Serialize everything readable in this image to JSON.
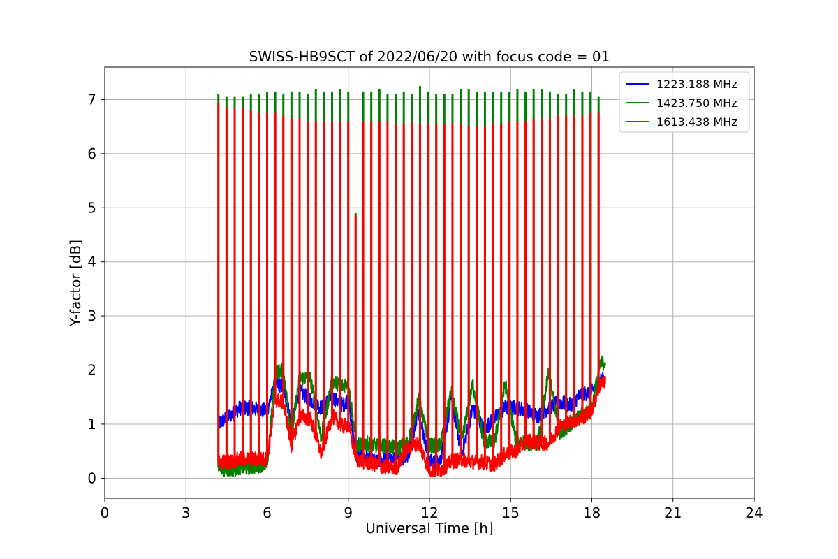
{
  "chart_data": {
    "type": "line",
    "title": "SWISS-HB9SCT of 2022/06/20 with focus code = 01",
    "xlabel": "Universal Time [h]",
    "ylabel": "Y-factor [dB]",
    "xlim": [
      0,
      24
    ],
    "ylim": [
      -0.37,
      7.6
    ],
    "xticks": [
      0,
      3,
      6,
      9,
      12,
      15,
      18,
      21,
      24
    ],
    "yticks": [
      0,
      1,
      2,
      3,
      4,
      5,
      6,
      7
    ],
    "grid": true,
    "legend_position": "top-right",
    "series": [
      {
        "name": "1223.188 MHz",
        "color": "#0000ff",
        "x": [
          4.2,
          4.6,
          5.0,
          5.4,
          5.8,
          6.0,
          6.3,
          6.6,
          6.9,
          7.2,
          7.6,
          8.0,
          8.4,
          8.8,
          9.0,
          9.3,
          9.6,
          10.0,
          10.4,
          10.8,
          11.2,
          11.6,
          12.0,
          12.4,
          12.8,
          13.2,
          13.6,
          14.0,
          14.4,
          14.8,
          15.2,
          15.6,
          16.0,
          16.4,
          16.8,
          17.2,
          17.6,
          18.0,
          18.3,
          18.5
        ],
        "values": [
          1.0,
          1.15,
          1.3,
          1.3,
          1.25,
          1.25,
          1.75,
          1.7,
          1.0,
          1.6,
          1.45,
          1.3,
          1.5,
          1.35,
          1.45,
          0.4,
          0.4,
          0.3,
          0.35,
          0.35,
          0.4,
          1.25,
          0.3,
          0.3,
          1.45,
          0.45,
          1.3,
          0.9,
          1.1,
          1.3,
          1.3,
          1.25,
          1.15,
          1.3,
          1.4,
          1.35,
          1.55,
          1.6,
          1.8,
          1.85
        ]
      },
      {
        "name": "1423.750 MHz",
        "color": "#008000",
        "x": [
          4.2,
          4.6,
          5.0,
          5.4,
          5.8,
          6.0,
          6.3,
          6.6,
          6.9,
          7.2,
          7.6,
          8.0,
          8.4,
          8.8,
          9.0,
          9.3,
          9.6,
          10.0,
          10.4,
          10.8,
          11.2,
          11.6,
          12.0,
          12.4,
          12.8,
          13.2,
          13.6,
          14.0,
          14.4,
          14.8,
          15.2,
          15.6,
          16.0,
          16.4,
          16.8,
          17.2,
          17.6,
          18.0,
          18.3,
          18.5
        ],
        "values": [
          0.2,
          0.15,
          0.2,
          0.2,
          0.25,
          0.25,
          1.95,
          2.0,
          0.8,
          1.85,
          1.85,
          0.75,
          1.8,
          1.7,
          1.8,
          0.6,
          0.65,
          0.6,
          0.6,
          0.55,
          0.65,
          1.45,
          0.6,
          0.6,
          1.6,
          0.7,
          1.75,
          0.7,
          0.65,
          1.75,
          0.7,
          0.65,
          0.65,
          1.95,
          0.85,
          1.0,
          1.15,
          1.3,
          2.1,
          2.15
        ]
      },
      {
        "name": "1613.438 MHz",
        "color": "#ff0000",
        "x": [
          4.2,
          4.6,
          5.0,
          5.4,
          5.8,
          6.0,
          6.3,
          6.6,
          6.9,
          7.2,
          7.6,
          8.0,
          8.4,
          8.8,
          9.0,
          9.3,
          9.6,
          10.0,
          10.4,
          10.8,
          11.2,
          11.6,
          12.0,
          12.4,
          12.8,
          13.2,
          13.6,
          14.0,
          14.4,
          14.8,
          15.2,
          15.6,
          16.0,
          16.4,
          16.8,
          17.2,
          17.6,
          18.0,
          18.3,
          18.5
        ],
        "values": [
          0.3,
          0.3,
          0.35,
          0.35,
          0.35,
          0.35,
          1.45,
          1.4,
          0.6,
          1.15,
          1.1,
          0.45,
          1.15,
          0.95,
          1.0,
          0.35,
          0.3,
          0.25,
          0.2,
          0.2,
          0.55,
          0.65,
          0.15,
          0.15,
          0.3,
          0.35,
          0.3,
          0.3,
          0.25,
          0.45,
          0.5,
          0.7,
          0.65,
          0.65,
          0.95,
          1.05,
          1.1,
          1.25,
          1.75,
          1.75
        ]
      }
    ],
    "calibration_spikes": {
      "x": [
        4.2,
        4.5,
        4.8,
        5.1,
        5.4,
        5.7,
        6.0,
        6.3,
        6.6,
        6.9,
        7.2,
        7.5,
        7.8,
        8.1,
        8.4,
        8.7,
        9.0,
        9.27,
        9.55,
        9.85,
        10.15,
        10.45,
        10.75,
        11.05,
        11.35,
        11.65,
        11.95,
        12.25,
        12.55,
        12.85,
        13.15,
        13.45,
        13.75,
        14.05,
        14.35,
        14.65,
        14.95,
        15.25,
        15.55,
        15.85,
        16.15,
        16.45,
        16.75,
        17.05,
        17.35,
        17.65,
        17.95,
        18.25
      ],
      "peak_green": [
        7.1,
        7.05,
        7.05,
        7.05,
        7.1,
        7.1,
        7.15,
        7.15,
        7.1,
        7.15,
        7.15,
        7.1,
        7.2,
        7.15,
        7.15,
        7.2,
        7.15,
        4.9,
        7.15,
        7.15,
        7.2,
        7.1,
        7.1,
        7.15,
        7.1,
        7.25,
        7.15,
        7.1,
        7.1,
        7.1,
        7.2,
        7.2,
        7.15,
        7.15,
        7.15,
        7.15,
        7.15,
        7.2,
        7.15,
        7.2,
        7.2,
        7.15,
        7.1,
        7.1,
        7.2,
        7.15,
        7.15,
        7.05
      ],
      "peak_red": [
        6.95,
        6.85,
        6.85,
        6.85,
        6.8,
        6.75,
        6.75,
        6.75,
        6.7,
        6.65,
        6.65,
        6.6,
        6.6,
        6.6,
        6.6,
        6.6,
        6.6,
        4.85,
        6.6,
        6.6,
        6.6,
        6.6,
        6.55,
        6.55,
        6.6,
        6.55,
        6.55,
        6.55,
        6.55,
        6.55,
        6.55,
        6.5,
        6.5,
        6.5,
        6.55,
        6.55,
        6.6,
        6.6,
        6.6,
        6.65,
        6.65,
        6.65,
        6.7,
        6.7,
        6.7,
        6.7,
        6.75,
        6.75
      ]
    }
  }
}
